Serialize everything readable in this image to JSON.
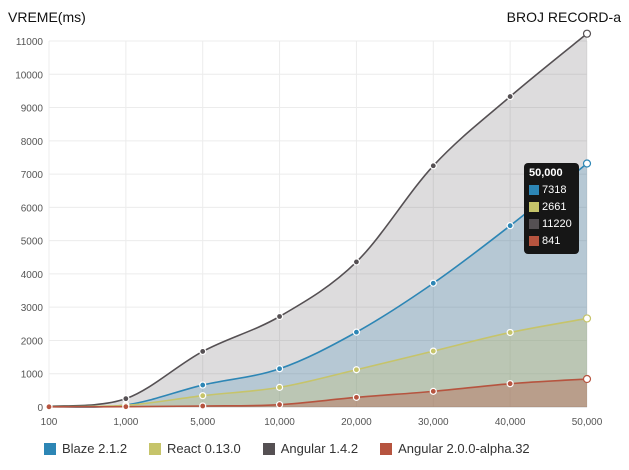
{
  "chart_data": {
    "type": "area",
    "xlabel": "BROJ RECORD-a",
    "ylabel": "VREME(ms)",
    "categories": [
      "100",
      "1,000",
      "5,000",
      "10,000",
      "20,000",
      "30,000",
      "40,000",
      "50,000"
    ],
    "ylim": [
      0,
      11000
    ],
    "yticks": [
      0,
      1000,
      2000,
      3000,
      4000,
      5000,
      6000,
      7000,
      8000,
      9000,
      10000,
      11000
    ],
    "ytick_labels": [
      "0",
      "1000",
      "2000",
      "3000",
      "4000",
      "5000",
      "6000",
      "7000",
      "8000",
      "9000",
      "10000",
      "11000"
    ],
    "grid": true,
    "legend_position": "bottom",
    "series": [
      {
        "name": "Angular 1.4.2",
        "color": "#555053",
        "values": [
          20,
          250,
          1670,
          2720,
          4360,
          7250,
          9330,
          11220
        ]
      },
      {
        "name": "Blaze 2.1.2",
        "color": "#2d86b5",
        "values": [
          10,
          60,
          660,
          1150,
          2250,
          3720,
          5450,
          7318
        ]
      },
      {
        "name": "React 0.13.0",
        "color": "#c6c46a",
        "values": [
          10,
          50,
          340,
          590,
          1120,
          1680,
          2240,
          2661
        ]
      },
      {
        "name": "Angular 2.0.0-alpha.32",
        "color": "#b6543f",
        "values": [
          5,
          10,
          30,
          70,
          290,
          470,
          700,
          841
        ]
      }
    ],
    "tooltip": {
      "label": "50,000",
      "rows": [
        {
          "value": "7318",
          "color": "#2d86b5"
        },
        {
          "value": "2661",
          "color": "#c6c46a"
        },
        {
          "value": "11220",
          "color": "#555053"
        },
        {
          "value": "841",
          "color": "#b6543f"
        }
      ]
    }
  },
  "legend": [
    {
      "label": "Blaze 2.1.2",
      "color": "#2d86b5"
    },
    {
      "label": "React 0.13.0",
      "color": "#c6c46a"
    },
    {
      "label": "Angular 1.4.2",
      "color": "#555053"
    },
    {
      "label": "Angular 2.0.0-alpha.32",
      "color": "#b6543f"
    }
  ]
}
